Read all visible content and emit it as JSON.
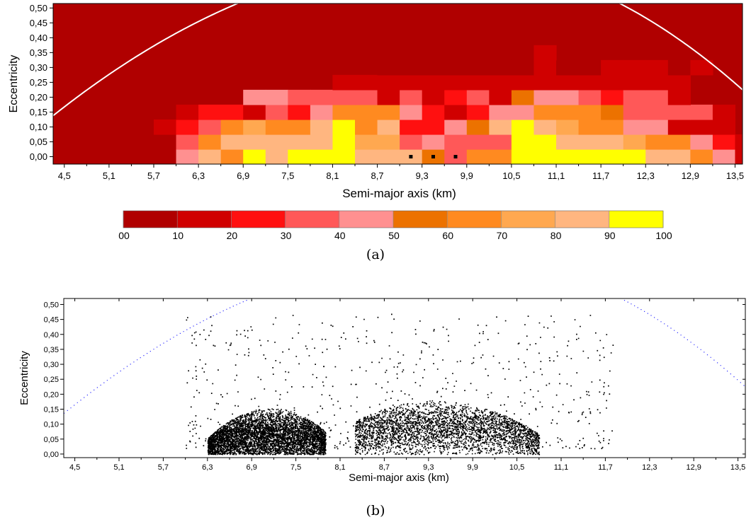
{
  "panels": {
    "a_label": "(a)",
    "b_label": "(b)"
  },
  "chart_data": [
    {
      "type": "heatmap",
      "panel": "(a)",
      "xlabel": "Semi-major axis (km)",
      "ylabel": "Eccentricity",
      "xlim": [
        4.35,
        13.6
      ],
      "ylim": [
        -0.025,
        0.515
      ],
      "x_ticks": [
        4.5,
        5.1,
        5.7,
        6.3,
        6.9,
        7.5,
        8.1,
        8.7,
        9.3,
        9.9,
        10.5,
        11.1,
        11.7,
        12.3,
        12.9,
        13.5
      ],
      "x_tick_labels": [
        "4,5",
        "5,1",
        "5,7",
        "6,3",
        "6,9",
        "7,5",
        "8,1",
        "8,7",
        "9,3",
        "9,9",
        "10,5",
        "11,1",
        "11,7",
        "12,3",
        "12,9",
        "13,5"
      ],
      "y_ticks": [
        0,
        0.05,
        0.1,
        0.15,
        0.2,
        0.25,
        0.3,
        0.35,
        0.4,
        0.45,
        0.5
      ],
      "y_tick_labels": [
        "0,00",
        "0,05",
        "0,10",
        "0,15",
        "0,20",
        "0,25",
        "0,30",
        "0,35",
        "0,40",
        "0,45",
        "0,50"
      ],
      "cell_dx": 0.3,
      "cell_de": 0.05,
      "x_start": 6.0,
      "colorbar": {
        "tick_labels": [
          "00",
          "10",
          "20",
          "30",
          "40",
          "50",
          "60",
          "70",
          "80",
          "90",
          "100"
        ],
        "colors": [
          "#b00000",
          "#d00000",
          "#ff1010",
          "#ff5858",
          "#ff9090",
          "#ec7200",
          "#ff8a20",
          "#ffa850",
          "#ffb680",
          "#ffff00"
        ]
      },
      "background_color": "#b00000",
      "rows_e": [
        0.0,
        0.05,
        0.1,
        0.15,
        0.2,
        0.25,
        0.3,
        0.35
      ],
      "row_x_starts": [
        6.0,
        6.0,
        5.7,
        6.0,
        6.9,
        8.1,
        8.7,
        10.8
      ],
      "grid_levels": [
        [
          4,
          8,
          6,
          9,
          8,
          9,
          9,
          9,
          8,
          8,
          8,
          5,
          3,
          6,
          6,
          9,
          9,
          9,
          9,
          9,
          9,
          8,
          8,
          6,
          4,
          1
        ],
        [
          3,
          6,
          8,
          8,
          8,
          8,
          8,
          9,
          7,
          7,
          3,
          4,
          3,
          3,
          3,
          9,
          9,
          8,
          8,
          8,
          7,
          6,
          6,
          4,
          2,
          1
        ],
        [
          1,
          2,
          3,
          6,
          7,
          6,
          6,
          8,
          9,
          6,
          8,
          2,
          2,
          4,
          5,
          8,
          9,
          8,
          7,
          6,
          6,
          4,
          4,
          1,
          1,
          1
        ],
        [
          1,
          2,
          2,
          1,
          3,
          2,
          4,
          6,
          6,
          6,
          4,
          2,
          1,
          2,
          4,
          4,
          6,
          6,
          6,
          5,
          3,
          3,
          3,
          3,
          1
        ],
        [
          4,
          4,
          3,
          3,
          3,
          3,
          1,
          3,
          1,
          2,
          3,
          1,
          5,
          4,
          4,
          3,
          2,
          3,
          3,
          1
        ],
        [
          1,
          1,
          1,
          1,
          1,
          1,
          1,
          1,
          1,
          1,
          1,
          1,
          1,
          1,
          1,
          1
        ],
        [
          0,
          0,
          0,
          0,
          0,
          0,
          0,
          1,
          0,
          0,
          1,
          1,
          1,
          0,
          1
        ],
        [
          1
        ]
      ],
      "black_markers_x": [
        9.15,
        9.45,
        9.75
      ],
      "annotations": "white curve"
    },
    {
      "type": "scatter",
      "panel": "(b)",
      "xlabel": "Semi-major axis (km)",
      "ylabel": "Eccentricity",
      "xlim": [
        4.35,
        13.6
      ],
      "ylim": [
        -0.012,
        0.52
      ],
      "x_ticks": [
        4.5,
        5.1,
        5.7,
        6.3,
        6.9,
        7.5,
        8.1,
        8.7,
        9.3,
        9.9,
        10.5,
        11.1,
        11.7,
        12.3,
        12.9,
        13.5
      ],
      "x_tick_labels": [
        "4,5",
        "5,1",
        "5,7",
        "6,3",
        "6,9",
        "7,5",
        "8,1",
        "8,7",
        "9,3",
        "9,9",
        "10,5",
        "11,1",
        "11,7",
        "12,3",
        "12,9",
        "13,5"
      ],
      "y_ticks": [
        0,
        0.05,
        0.1,
        0.15,
        0.2,
        0.25,
        0.3,
        0.35,
        0.4,
        0.45,
        0.5
      ],
      "y_tick_labels": [
        "0,00",
        "0,05",
        "0,10",
        "0,15",
        "0,20",
        "0,25",
        "0,30",
        "0,35",
        "0,40",
        "0,45",
        "0,50"
      ],
      "clusters": [
        {
          "x_range": [
            6.3,
            7.9
          ],
          "x_center": 7.15,
          "e_center": 0.065
        },
        {
          "x_range": [
            8.3,
            10.8
          ],
          "x_center": 9.4,
          "e_center": 0.09
        }
      ],
      "boundary_curve_color": "#3333ff",
      "point_color": "#000000"
    }
  ],
  "boundary_curve": {
    "a_peak": 9.65,
    "e_peak": 0.665,
    "x_left": 4.35,
    "e_left": 0.138,
    "x_right": 13.6,
    "e_right": 0.225
  }
}
